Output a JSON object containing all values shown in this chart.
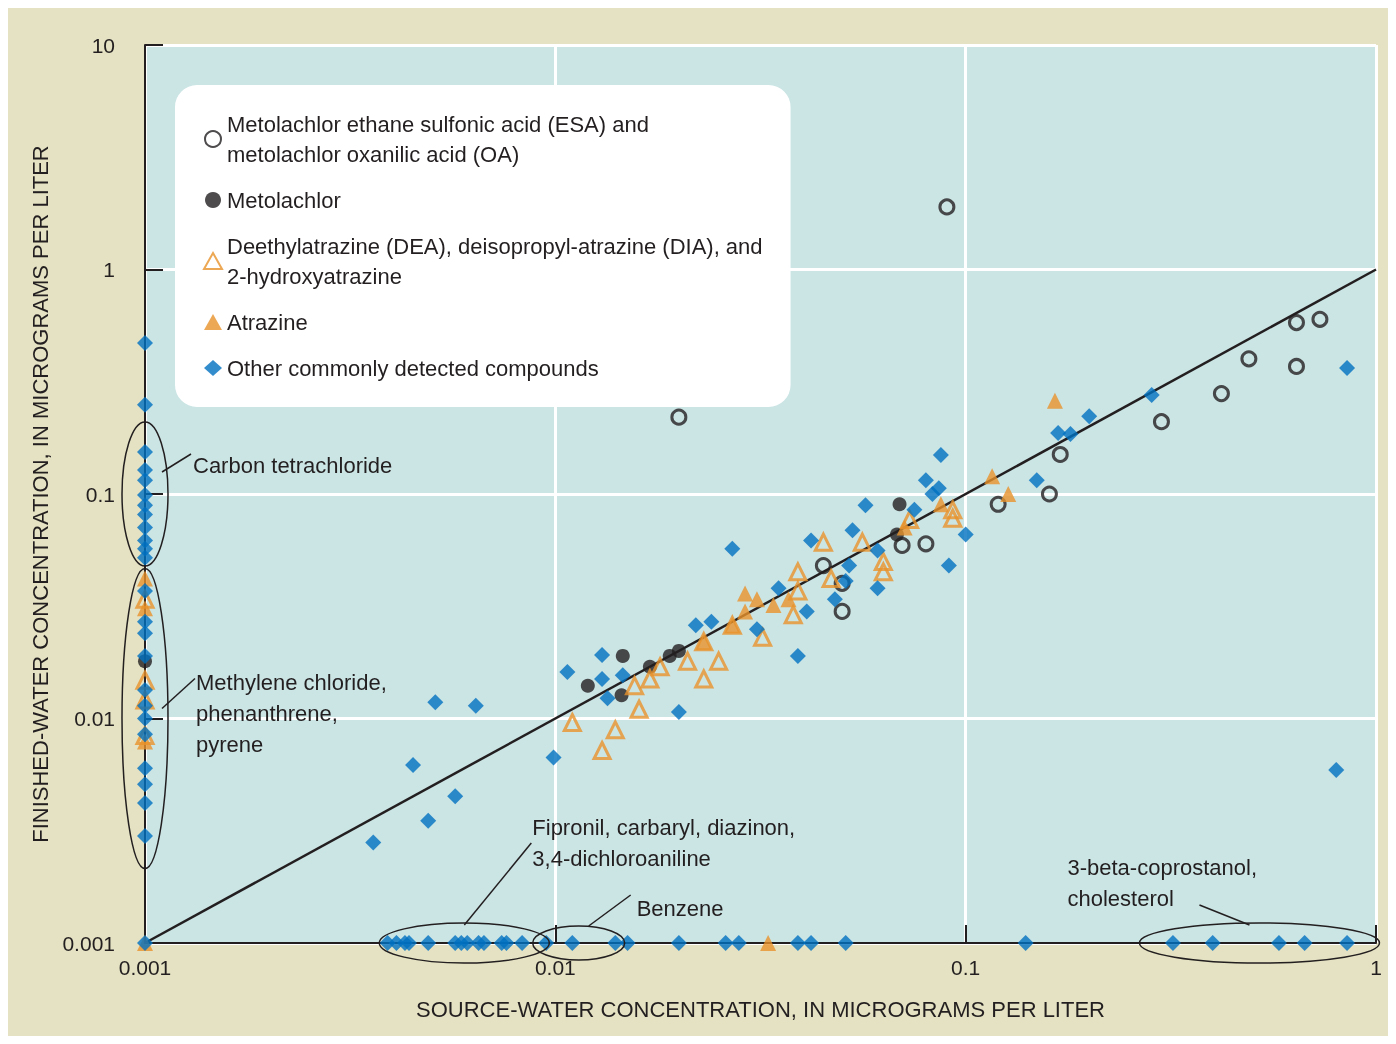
{
  "chart_data": {
    "type": "scatter",
    "xlabel": "SOURCE-WATER CONCENTRATION, IN MICROGRAMS PER LITER",
    "ylabel": "FINISHED-WATER CONCENTRATION, IN MICROGRAMS PER LITER",
    "log": "xy",
    "xlim": [
      0.001,
      1
    ],
    "ylim": [
      0.001,
      10
    ],
    "xticks": [
      0.001,
      0.01,
      0.1,
      1
    ],
    "yticks": [
      0.001,
      0.01,
      0.1,
      1,
      10
    ],
    "grid": true,
    "legend": "top left",
    "series": [
      {
        "name": "Metolachlor ethane sulfonic acid (ESA) and\nmetolachlor oxanilic acid (OA)",
        "color": "#231f20",
        "marker": "circle",
        "x": [
          0.09,
          0.02,
          0.64,
          0.73,
          0.49,
          0.64,
          0.42,
          0.3,
          0.17,
          0.16,
          0.12,
          0.07,
          0.08,
          0.05,
          0.05,
          0.045
        ],
        "values": [
          1.9,
          0.22,
          0.58,
          0.6,
          0.4,
          0.37,
          0.28,
          0.21,
          0.15,
          0.1,
          0.09,
          0.059,
          0.06,
          0.03,
          0.04,
          0.048
        ]
      },
      {
        "name": "Metolachlor",
        "color": "#231f20",
        "marker": "circle",
        "x": [
          0.069,
          0.068,
          0.012,
          0.0146,
          0.0145,
          0.017,
          0.019,
          0.02,
          0.001
        ],
        "values": [
          0.09,
          0.066,
          0.014,
          0.019,
          0.0127,
          0.017,
          0.019,
          0.02,
          0.018
        ]
      },
      {
        "name": "Deethylatrazine (DEA), deisopropyl-atrazine (DIA), and\n2-hydroxyatrazine",
        "color": "#e8922a",
        "marker": "triangle",
        "x": [
          0.011,
          0.013,
          0.014,
          0.016,
          0.0156,
          0.017,
          0.018,
          0.021,
          0.023,
          0.025,
          0.023,
          0.027,
          0.032,
          0.038,
          0.039,
          0.039,
          0.045,
          0.047,
          0.056,
          0.063,
          0.063,
          0.073,
          0.093,
          0.093,
          0.001,
          0.001,
          0.001,
          0.001
        ],
        "values": [
          0.0096,
          0.0072,
          0.0089,
          0.011,
          0.014,
          0.015,
          0.017,
          0.018,
          0.015,
          0.018,
          0.022,
          0.026,
          0.023,
          0.029,
          0.037,
          0.045,
          0.061,
          0.042,
          0.061,
          0.05,
          0.045,
          0.077,
          0.085,
          0.078,
          0.034,
          0.0148,
          0.0121,
          0.0084
        ]
      },
      {
        "name": "Atrazine",
        "color": "#e8922a",
        "marker": "triangle",
        "x": [
          0.165,
          0.116,
          0.127,
          0.033,
          0.001,
          0.029,
          0.031,
          0.034,
          0.037,
          0.029,
          0.023,
          0.027,
          0.071,
          0.087,
          0.001,
          0.001,
          0.001
        ],
        "values": [
          0.26,
          0.12,
          0.1,
          0.001,
          0.001,
          0.036,
          0.034,
          0.032,
          0.034,
          0.03,
          0.022,
          0.026,
          0.071,
          0.09,
          0.042,
          0.031,
          0.0079
        ]
      },
      {
        "name": "Other commonly detected compounds",
        "color": "#0070c0",
        "marker": "diamond",
        "x": [
          0.001,
          0.001,
          0.001,
          0.001,
          0.001,
          0.001,
          0.001,
          0.001,
          0.001,
          0.001,
          0.001,
          0.001,
          0.001,
          0.001,
          0.001,
          0.001,
          0.001,
          0.001,
          0.001,
          0.001,
          0.001,
          0.001,
          0.001,
          0.001,
          0.001,
          0.0039,
          0.0041,
          0.0043,
          0.0044,
          0.0049,
          0.0057,
          0.0059,
          0.0061,
          0.0065,
          0.0067,
          0.0074,
          0.0076,
          0.0083,
          0.0095,
          0.011,
          0.014,
          0.015,
          0.02,
          0.026,
          0.028,
          0.039,
          0.042,
          0.051,
          0.14,
          0.32,
          0.4,
          0.58,
          0.67,
          0.85,
          0.0036,
          0.0049,
          0.0045,
          0.0057,
          0.0051,
          0.0064,
          0.0099,
          0.0107,
          0.013,
          0.013,
          0.0134,
          0.0146,
          0.02,
          0.027,
          0.022,
          0.024,
          0.031,
          0.035,
          0.039,
          0.041,
          0.042,
          0.048,
          0.051,
          0.053,
          0.057,
          0.061,
          0.061,
          0.052,
          0.075,
          0.08,
          0.083,
          0.087,
          0.086,
          0.091,
          0.1,
          0.149,
          0.168,
          0.18,
          0.2,
          0.284,
          0.85,
          0.8
        ],
        "values": [
          0.47,
          0.25,
          0.154,
          0.128,
          0.115,
          0.099,
          0.089,
          0.081,
          0.071,
          0.062,
          0.057,
          0.052,
          0.037,
          0.027,
          0.024,
          0.019,
          0.0134,
          0.0114,
          0.01,
          0.0085,
          0.006,
          0.0051,
          0.0042,
          0.003,
          0.001,
          0.001,
          0.001,
          0.001,
          0.001,
          0.001,
          0.001,
          0.001,
          0.001,
          0.001,
          0.001,
          0.001,
          0.001,
          0.001,
          0.001,
          0.001,
          0.001,
          0.001,
          0.001,
          0.001,
          0.001,
          0.001,
          0.001,
          0.001,
          0.001,
          0.001,
          0.001,
          0.001,
          0.001,
          0.001,
          0.0028,
          0.0035,
          0.0062,
          0.0045,
          0.0118,
          0.0114,
          0.0067,
          0.0161,
          0.0192,
          0.015,
          0.0123,
          0.0156,
          0.0107,
          0.057,
          0.026,
          0.027,
          0.025,
          0.038,
          0.019,
          0.03,
          0.062,
          0.034,
          0.041,
          0.069,
          0.089,
          0.038,
          0.056,
          0.048,
          0.085,
          0.115,
          0.1,
          0.149,
          0.106,
          0.048,
          0.066,
          0.115,
          0.187,
          0.185,
          0.222,
          0.276,
          0.364,
          0.0059
        ]
      },
      {
        "type": "line",
        "color": "#231f20",
        "marker": "none",
        "x": [
          0.001,
          1
        ],
        "values": [
          0.001,
          1
        ]
      }
    ],
    "annotations": [
      "Carbon tetrachloride",
      "Methylene chloride,\nphenanthrene,\npyrene",
      "Fipronil, carbaryl, diazinon,\n3,4-dichloroaniline",
      "Benzene",
      "3-beta-coprostanol,\ncholesterol"
    ]
  }
}
